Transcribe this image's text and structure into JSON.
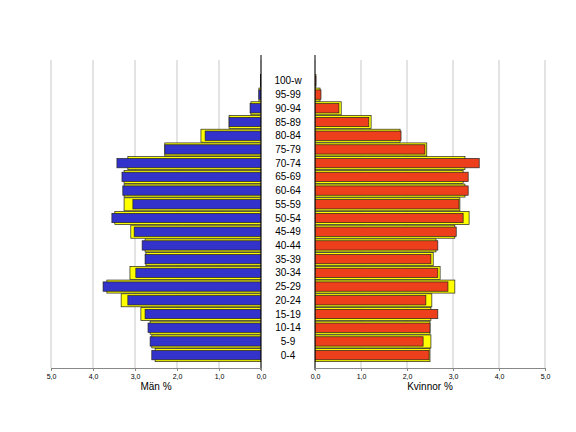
{
  "chart_data": [
    {
      "type": "bar",
      "orientation": "horizontal",
      "grid": true,
      "x_label": "Män %",
      "categories": [
        "0-4",
        "5-9",
        "10-14",
        "15-19",
        "20-24",
        "25-29",
        "30-34",
        "35-39",
        "40-44",
        "45-49",
        "50-54",
        "55-59",
        "60-64",
        "65-69",
        "70-74",
        "75-79",
        "80-84",
        "85-89",
        "90-94",
        "95-99",
        "100-w"
      ],
      "xlim": [
        5,
        0
      ],
      "xticks": [
        {
          "value": 5,
          "label": "5,0"
        },
        {
          "value": 4,
          "label": "4,0"
        },
        {
          "value": 3,
          "label": "3,0"
        },
        {
          "value": 2,
          "label": "2,0"
        },
        {
          "value": 1,
          "label": "1,0"
        },
        {
          "value": 0,
          "label": "0,0"
        }
      ],
      "series": [
        {
          "color": "#ffff00",
          "values": [
            2.52,
            2.6,
            2.64,
            2.86,
            3.33,
            3.67,
            3.12,
            2.74,
            2.76,
            3.1,
            3.48,
            3.26,
            3.26,
            3.26,
            3.17,
            2.29,
            1.43,
            0.76,
            0.24,
            0.05,
            0.01
          ]
        },
        {
          "color": "#3333cc",
          "values": [
            2.6,
            2.64,
            2.69,
            2.76,
            3.17,
            3.76,
            2.98,
            2.76,
            2.83,
            3.02,
            3.55,
            3.05,
            3.29,
            3.31,
            3.43,
            2.29,
            1.33,
            0.76,
            0.26,
            0.05,
            0.01
          ]
        }
      ]
    },
    {
      "type": "bar",
      "orientation": "horizontal",
      "grid": true,
      "x_label": "Kvinnor %",
      "categories": [
        "0-4",
        "5-9",
        "10-14",
        "15-19",
        "20-24",
        "25-29",
        "30-34",
        "35-39",
        "40-44",
        "45-49",
        "50-54",
        "55-59",
        "60-64",
        "65-69",
        "70-74",
        "75-79",
        "80-84",
        "85-89",
        "90-94",
        "95-99",
        "100-w"
      ],
      "xlim": [
        0,
        5
      ],
      "xticks": [
        {
          "value": 0,
          "label": "0,0"
        },
        {
          "value": 1,
          "label": "1,0"
        },
        {
          "value": 2,
          "label": "2,0"
        },
        {
          "value": 3,
          "label": "3,0"
        },
        {
          "value": 4,
          "label": "4,0"
        },
        {
          "value": 5,
          "label": "5,0"
        }
      ],
      "series": [
        {
          "color": "#ffff00",
          "values": [
            2.5,
            2.52,
            2.5,
            2.52,
            2.54,
            3.04,
            2.72,
            2.57,
            2.63,
            3.04,
            3.35,
            3.15,
            3.26,
            3.22,
            3.26,
            2.43,
            1.85,
            1.22,
            0.57,
            0.11,
            0.02
          ]
        },
        {
          "color": "#ee3f1c",
          "values": [
            2.48,
            2.35,
            2.5,
            2.67,
            2.41,
            2.89,
            2.67,
            2.52,
            2.67,
            3.07,
            3.22,
            3.13,
            3.33,
            3.33,
            3.57,
            2.39,
            1.87,
            1.17,
            0.52,
            0.13,
            0.02
          ]
        }
      ]
    }
  ]
}
